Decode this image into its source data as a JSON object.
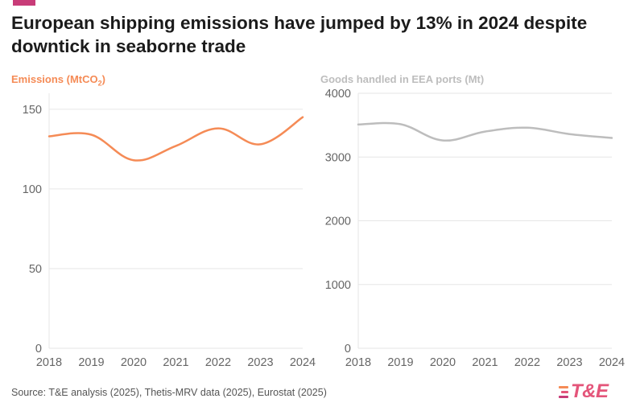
{
  "header": {
    "title": "European shipping emissions have jumped by 13% in 2024 despite downtick in seaborne trade"
  },
  "colors": {
    "accent": "#c83c78",
    "emissions": "#f58b56",
    "goods": "#bdbdbd",
    "grid": "#e6e6e6",
    "axis_text": "#666666"
  },
  "chart_data": [
    {
      "type": "line",
      "title": "Emissions (MtCO₂)",
      "title_main": "Emissions (MtCO",
      "title_sub": "2",
      "title_end": ")",
      "x": [
        2018,
        2019,
        2020,
        2021,
        2022,
        2023,
        2024
      ],
      "x_tick_labels": [
        "2018",
        "2019",
        "2020",
        "2021",
        "2022",
        "2023",
        "2024"
      ],
      "y_ticks": [
        0,
        50,
        100,
        150
      ],
      "y_tick_labels": [
        "0",
        "50",
        "100",
        "150"
      ],
      "ylim": [
        0,
        160
      ],
      "series": [
        {
          "name": "Emissions",
          "unit": "MtCO₂",
          "values": [
            133,
            134,
            118,
            127,
            138,
            128,
            145
          ]
        }
      ]
    },
    {
      "type": "line",
      "title": "Goods handled in EEA ports (Mt)",
      "x": [
        2018,
        2019,
        2020,
        2021,
        2022,
        2023,
        2024
      ],
      "x_tick_labels": [
        "2018",
        "2019",
        "2020",
        "2021",
        "2022",
        "2023",
        "2024"
      ],
      "y_ticks": [
        0,
        1000,
        2000,
        3000,
        4000
      ],
      "y_tick_labels": [
        "0",
        "1000",
        "2000",
        "3000",
        "4000"
      ],
      "ylim": [
        0,
        4000
      ],
      "series": [
        {
          "name": "Goods handled in EEA ports",
          "unit": "Mt",
          "values": [
            3510,
            3515,
            3260,
            3400,
            3460,
            3360,
            3300
          ]
        }
      ]
    }
  ],
  "footer": {
    "source": "Source: T&E analysis (2025), Thetis-MRV data (2025), Eurostat (2025)",
    "logo_text": "T&E",
    "logo_colors": [
      "#f58b56",
      "#e4557a",
      "#c83c78"
    ]
  }
}
